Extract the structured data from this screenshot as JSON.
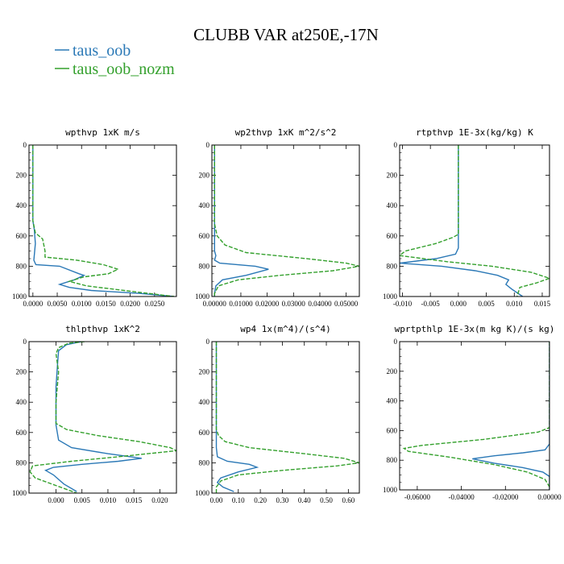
{
  "figure": {
    "title": "CLUBB VAR at250E,-17N",
    "legend": [
      {
        "name": "taus_oob",
        "color": "#2a78b6",
        "dash": "solid"
      },
      {
        "name": "taus_oob_nozm",
        "color": "#33a02c",
        "dash": "dashed"
      }
    ]
  },
  "chart_data": [
    {
      "type": "line",
      "title": "wpthvp   1xK m/s",
      "xlim": [
        -0.0008,
        0.0295
      ],
      "ylim": [
        1000,
        0
      ],
      "xticks": [
        "0.0000",
        "0.0050",
        "0.0100",
        "0.0150",
        "0.0200",
        "0.0250"
      ],
      "xtickvals": [
        0,
        0.005,
        0.01,
        0.015,
        0.02,
        0.025
      ],
      "yticks": [
        "0",
        "200",
        "400",
        "600",
        "800",
        "1000"
      ],
      "series": [
        {
          "name": "taus_oob",
          "points": [
            [
              0,
              0
            ],
            [
              0,
              500
            ],
            [
              0.0003,
              560
            ],
            [
              0.0005,
              650
            ],
            [
              0.0002,
              760
            ],
            [
              0.0006,
              790
            ],
            [
              0.0055,
              800
            ],
            [
              0.0095,
              850
            ],
            [
              0.0105,
              860
            ],
            [
              0.0085,
              890
            ],
            [
              0.0055,
              920
            ],
            [
              0.0075,
              940
            ],
            [
              0.012,
              960
            ],
            [
              0.022,
              980
            ],
            [
              0.029,
              1000
            ]
          ]
        },
        {
          "name": "taus_oob_nozm",
          "points": [
            [
              0,
              0
            ],
            [
              0,
              500
            ],
            [
              0.0005,
              580
            ],
            [
              0.002,
              620
            ],
            [
              0.0025,
              700
            ],
            [
              0.0025,
              740
            ],
            [
              0.009,
              760
            ],
            [
              0.0145,
              790
            ],
            [
              0.0175,
              820
            ],
            [
              0.0155,
              850
            ],
            [
              0.0105,
              870
            ],
            [
              0.0075,
              900
            ],
            [
              0.011,
              930
            ],
            [
              0.02,
              965
            ],
            [
              0.029,
              1000
            ]
          ]
        }
      ]
    },
    {
      "type": "line",
      "title": "wp2thvp   1xK m^2/s^2",
      "xlim": [
        -0.001,
        0.055
      ],
      "ylim": [
        1000,
        0
      ],
      "xticks": [
        "0.00000",
        "0.01000",
        "0.02000",
        "0.03000",
        "0.04000",
        "0.05000"
      ],
      "xtickvals": [
        0,
        0.01,
        0.02,
        0.03,
        0.04,
        0.05
      ],
      "yticks": [
        "0",
        "200",
        "400",
        "600",
        "800",
        "1000"
      ],
      "series": [
        {
          "name": "taus_oob",
          "points": [
            [
              0,
              0
            ],
            [
              0,
              700
            ],
            [
              0.0005,
              730
            ],
            [
              0,
              760
            ],
            [
              0.002,
              780
            ],
            [
              0.0155,
              800
            ],
            [
              0.0205,
              820
            ],
            [
              0.012,
              860
            ],
            [
              0.003,
              890
            ],
            [
              0.0005,
              930
            ],
            [
              0,
              980
            ],
            [
              0,
              1000
            ]
          ]
        },
        {
          "name": "taus_oob_nozm",
          "points": [
            [
              0,
              0
            ],
            [
              0,
              520
            ],
            [
              0.001,
              600
            ],
            [
              0.004,
              660
            ],
            [
              0.012,
              710
            ],
            [
              0.035,
              750
            ],
            [
              0.05,
              780
            ],
            [
              0.055,
              800
            ],
            [
              0.045,
              830
            ],
            [
              0.025,
              860
            ],
            [
              0.009,
              890
            ],
            [
              0.0015,
              930
            ],
            [
              0,
              980
            ],
            [
              0,
              1000
            ]
          ]
        }
      ]
    },
    {
      "type": "line",
      "title": "rtpthvp   1E-3x(kg/kg) K",
      "xlim": [
        -0.0105,
        0.0163
      ],
      "ylim": [
        1000,
        0
      ],
      "xticks": [
        "-0.010",
        "-0.005",
        "0.000",
        "0.005",
        "0.010",
        "0.015"
      ],
      "xtickvals": [
        -0.01,
        -0.005,
        0,
        0.005,
        0.01,
        0.015
      ],
      "yticks": [
        "0",
        "200",
        "400",
        "600",
        "800",
        "1000"
      ],
      "series": [
        {
          "name": "taus_oob",
          "points": [
            [
              0,
              0
            ],
            [
              0,
              680
            ],
            [
              -0.0005,
              720
            ],
            [
              -0.004,
              750
            ],
            [
              -0.0105,
              780
            ],
            [
              -0.003,
              800
            ],
            [
              0.003,
              830
            ],
            [
              0.007,
              860
            ],
            [
              0.009,
              890
            ],
            [
              0.0085,
              920
            ],
            [
              0.0095,
              950
            ],
            [
              0.0115,
              1000
            ]
          ]
        },
        {
          "name": "taus_oob_nozm",
          "points": [
            [
              0,
              0
            ],
            [
              0,
              590
            ],
            [
              -0.001,
              610
            ],
            [
              -0.004,
              650
            ],
            [
              -0.0095,
              700
            ],
            [
              -0.0105,
              730
            ],
            [
              -0.002,
              770
            ],
            [
              0.006,
              800
            ],
            [
              0.013,
              840
            ],
            [
              0.0163,
              880
            ],
            [
              0.014,
              910
            ],
            [
              0.011,
              940
            ],
            [
              0.0105,
              1000
            ]
          ]
        }
      ]
    },
    {
      "type": "line",
      "title": "thlpthvp   1xK^2",
      "xlim": [
        -0.0052,
        0.0232
      ],
      "ylim": [
        1000,
        0
      ],
      "xticks": [
        "0.000",
        "0.005",
        "0.010",
        "0.015",
        "0.020"
      ],
      "xtickvals": [
        0,
        0.005,
        0.01,
        0.015,
        0.02
      ],
      "yticks": [
        "0",
        "200",
        "400",
        "600",
        "800",
        "1000"
      ],
      "series": [
        {
          "name": "taus_oob",
          "points": [
            [
              0.005,
              0
            ],
            [
              0.002,
              20
            ],
            [
              0.0005,
              60
            ],
            [
              0.0003,
              150
            ],
            [
              0,
              300
            ],
            [
              0,
              550
            ],
            [
              0.0005,
              650
            ],
            [
              0.003,
              700
            ],
            [
              0.01,
              740
            ],
            [
              0.0165,
              770
            ],
            [
              0.012,
              790
            ],
            [
              0.005,
              810
            ],
            [
              -0.0005,
              830
            ],
            [
              -0.002,
              850
            ],
            [
              -0.0005,
              880
            ],
            [
              0.0015,
              940
            ],
            [
              0.004,
              990
            ]
          ]
        },
        {
          "name": "taus_oob_nozm",
          "points": [
            [
              0.0055,
              0
            ],
            [
              0.0025,
              10
            ],
            [
              0.0005,
              40
            ],
            [
              0,
              80
            ],
            [
              0.0005,
              200
            ],
            [
              0,
              400
            ],
            [
              0,
              540
            ],
            [
              0.002,
              580
            ],
            [
              0.008,
              620
            ],
            [
              0.016,
              660
            ],
            [
              0.022,
              700
            ],
            [
              0.0232,
              720
            ],
            [
              0.012,
              760
            ],
            [
              0.003,
              790
            ],
            [
              -0.0045,
              820
            ],
            [
              -0.005,
              860
            ],
            [
              -0.004,
              900
            ],
            [
              0,
              950
            ],
            [
              0.004,
              1000
            ]
          ]
        }
      ]
    },
    {
      "type": "line",
      "title": "wp4   1x(m^4)/(s^4)",
      "xlim": [
        -0.02,
        0.65
      ],
      "ylim": [
        1000,
        0
      ],
      "xticks": [
        "0.00",
        "0.10",
        "0.20",
        "0.30",
        "0.40",
        "0.50",
        "0.60"
      ],
      "xtickvals": [
        0,
        0.1,
        0.2,
        0.3,
        0.4,
        0.5,
        0.6
      ],
      "yticks": [
        "0",
        "200",
        "400",
        "600",
        "800",
        "1000"
      ],
      "series": [
        {
          "name": "taus_oob",
          "points": [
            [
              0,
              0
            ],
            [
              0,
              700
            ],
            [
              0.005,
              760
            ],
            [
              0.05,
              790
            ],
            [
              0.15,
              810
            ],
            [
              0.185,
              830
            ],
            [
              0.1,
              860
            ],
            [
              0.02,
              900
            ],
            [
              0.005,
              930
            ],
            [
              0.03,
              960
            ],
            [
              0.08,
              990
            ]
          ]
        },
        {
          "name": "taus_oob_nozm",
          "points": [
            [
              0,
              0
            ],
            [
              0,
              580
            ],
            [
              0.01,
              620
            ],
            [
              0.04,
              660
            ],
            [
              0.15,
              700
            ],
            [
              0.4,
              740
            ],
            [
              0.58,
              770
            ],
            [
              0.65,
              800
            ],
            [
              0.55,
              820
            ],
            [
              0.3,
              850
            ],
            [
              0.1,
              880
            ],
            [
              0.02,
              920
            ],
            [
              0,
              960
            ],
            [
              0,
              1000
            ]
          ]
        }
      ]
    },
    {
      "type": "line",
      "title": "wprtpthlp   1E-3x(m kg K)/(s kg)",
      "xlim": [
        -0.068,
        0
      ],
      "ylim": [
        1000,
        0
      ],
      "xticks": [
        "-0.06000",
        "-0.04000",
        "-0.02000",
        "0.00000"
      ],
      "xtickvals": [
        -0.06,
        -0.04,
        -0.02,
        0
      ],
      "yticks": [
        "0",
        "200",
        "400",
        "600",
        "800",
        "1000"
      ],
      "series": [
        {
          "name": "taus_oob",
          "points": [
            [
              0,
              0
            ],
            [
              0,
              690
            ],
            [
              -0.002,
              730
            ],
            [
              -0.012,
              750
            ],
            [
              -0.025,
              770
            ],
            [
              -0.035,
              790
            ],
            [
              -0.025,
              820
            ],
            [
              -0.012,
              850
            ],
            [
              -0.003,
              880
            ],
            [
              0,
              910
            ],
            [
              0,
              1000
            ]
          ]
        },
        {
          "name": "taus_oob_nozm",
          "points": [
            [
              0,
              0
            ],
            [
              0,
              580
            ],
            [
              -0.005,
              610
            ],
            [
              -0.03,
              660
            ],
            [
              -0.058,
              700
            ],
            [
              -0.066,
              720
            ],
            [
              -0.064,
              740
            ],
            [
              -0.045,
              780
            ],
            [
              -0.025,
              830
            ],
            [
              -0.01,
              880
            ],
            [
              -0.002,
              930
            ],
            [
              0,
              980
            ],
            [
              0,
              1000
            ]
          ]
        }
      ]
    }
  ]
}
